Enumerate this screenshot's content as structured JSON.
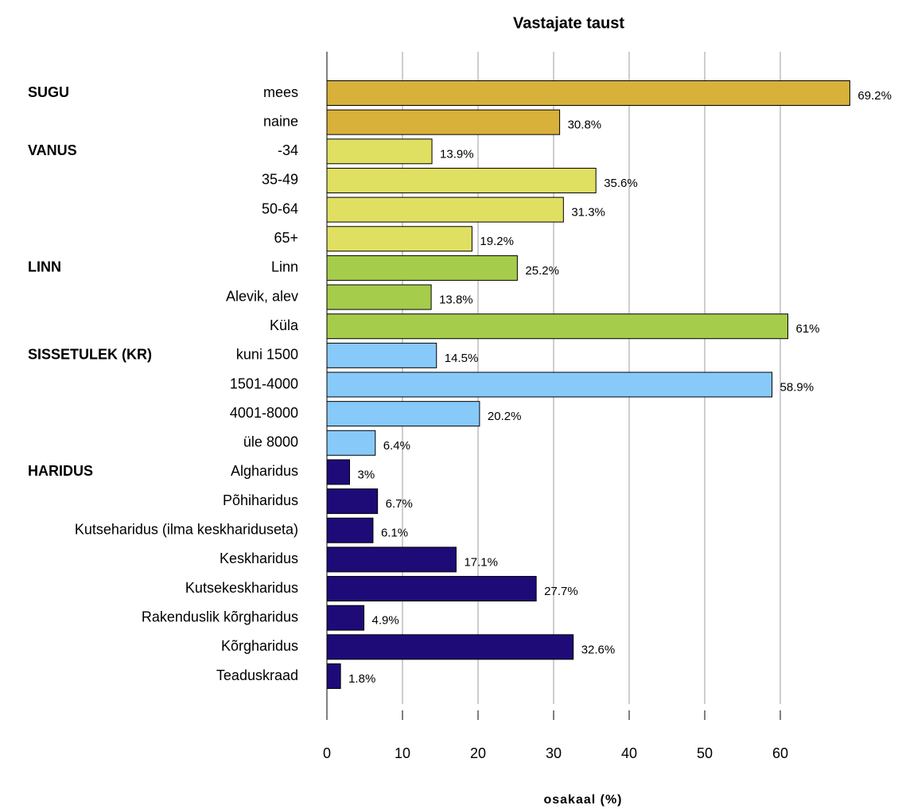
{
  "chart_data": {
    "type": "bar",
    "orientation": "horizontal",
    "title": "Vastajate taust",
    "x_label": "osakaal (%)",
    "xlim": [
      0,
      70
    ],
    "xticks": [
      0,
      10,
      20,
      30,
      40,
      50,
      60
    ],
    "grid": true,
    "groups": [
      {
        "name": "SUGU",
        "color": "#d8b13a",
        "categories": [
          "mees",
          "naine"
        ],
        "values": [
          69.2,
          30.8
        ],
        "value_labels": [
          "69.2%",
          "30.8%"
        ]
      },
      {
        "name": "VANUS",
        "color": "#dfe062",
        "categories": [
          "-34",
          "35-49",
          "50-64",
          "65+"
        ],
        "values": [
          13.9,
          35.6,
          31.3,
          19.2
        ],
        "value_labels": [
          "13.9%",
          "35.6%",
          "31.3%",
          "19.2%"
        ]
      },
      {
        "name": "LINN",
        "color": "#a6cc4b",
        "categories": [
          "Linn",
          "Alevik, alev",
          "Küla"
        ],
        "values": [
          25.2,
          13.8,
          61
        ],
        "value_labels": [
          "25.2%",
          "13.8%",
          "61%"
        ]
      },
      {
        "name": "SISSETULEK (KR)",
        "color": "#87cafa",
        "categories": [
          "kuni 1500",
          "1501-4000",
          "4001-8000",
          "üle 8000"
        ],
        "values": [
          14.5,
          58.9,
          20.2,
          6.4
        ],
        "value_labels": [
          "14.5%",
          "58.9%",
          "20.2%",
          "6.4%"
        ]
      },
      {
        "name": "HARIDUS",
        "color": "#1f0b78",
        "categories": [
          "Algharidus",
          "Põhiharidus",
          "Kutseharidus (ilma keskhariduseta)",
          "Keskharidus",
          "Kutsekeskharidus",
          "Rakenduslik kõrgharidus",
          "Kõrgharidus",
          "Teaduskraad"
        ],
        "values": [
          3,
          6.7,
          6.1,
          17.1,
          27.7,
          4.9,
          32.6,
          1.8
        ],
        "value_labels": [
          "3%",
          "6.7%",
          "6.1%",
          "17.1%",
          "27.7%",
          "4.9%",
          "32.6%",
          "1.8%"
        ]
      }
    ]
  }
}
